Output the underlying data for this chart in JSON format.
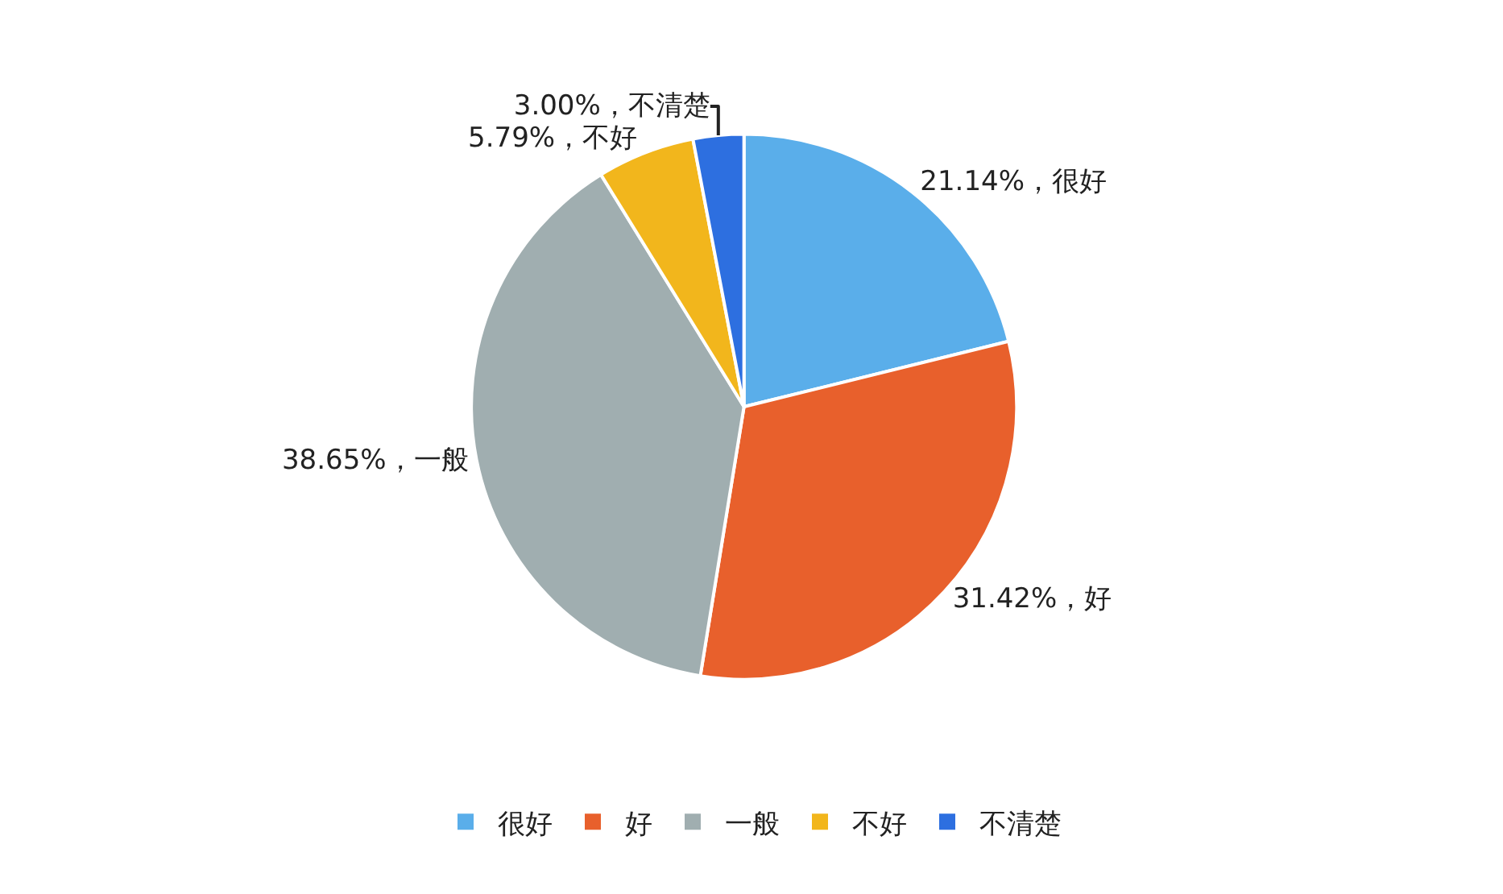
{
  "chart_data": {
    "type": "pie",
    "categories": [
      "很好",
      "好",
      "一般",
      "不好",
      "不清楚"
    ],
    "values": [
      21.14,
      31.42,
      38.65,
      5.79,
      3.0
    ],
    "colors": [
      "#5aaeea",
      "#e8602c",
      "#a0aeb0",
      "#f2b61c",
      "#2d6fe0"
    ],
    "value_labels": [
      "21.14%，很好",
      "31.42%，好",
      "38.65%，一般",
      "5.79%，不好",
      "3.00%，不清楚"
    ],
    "legend": "bottom"
  }
}
